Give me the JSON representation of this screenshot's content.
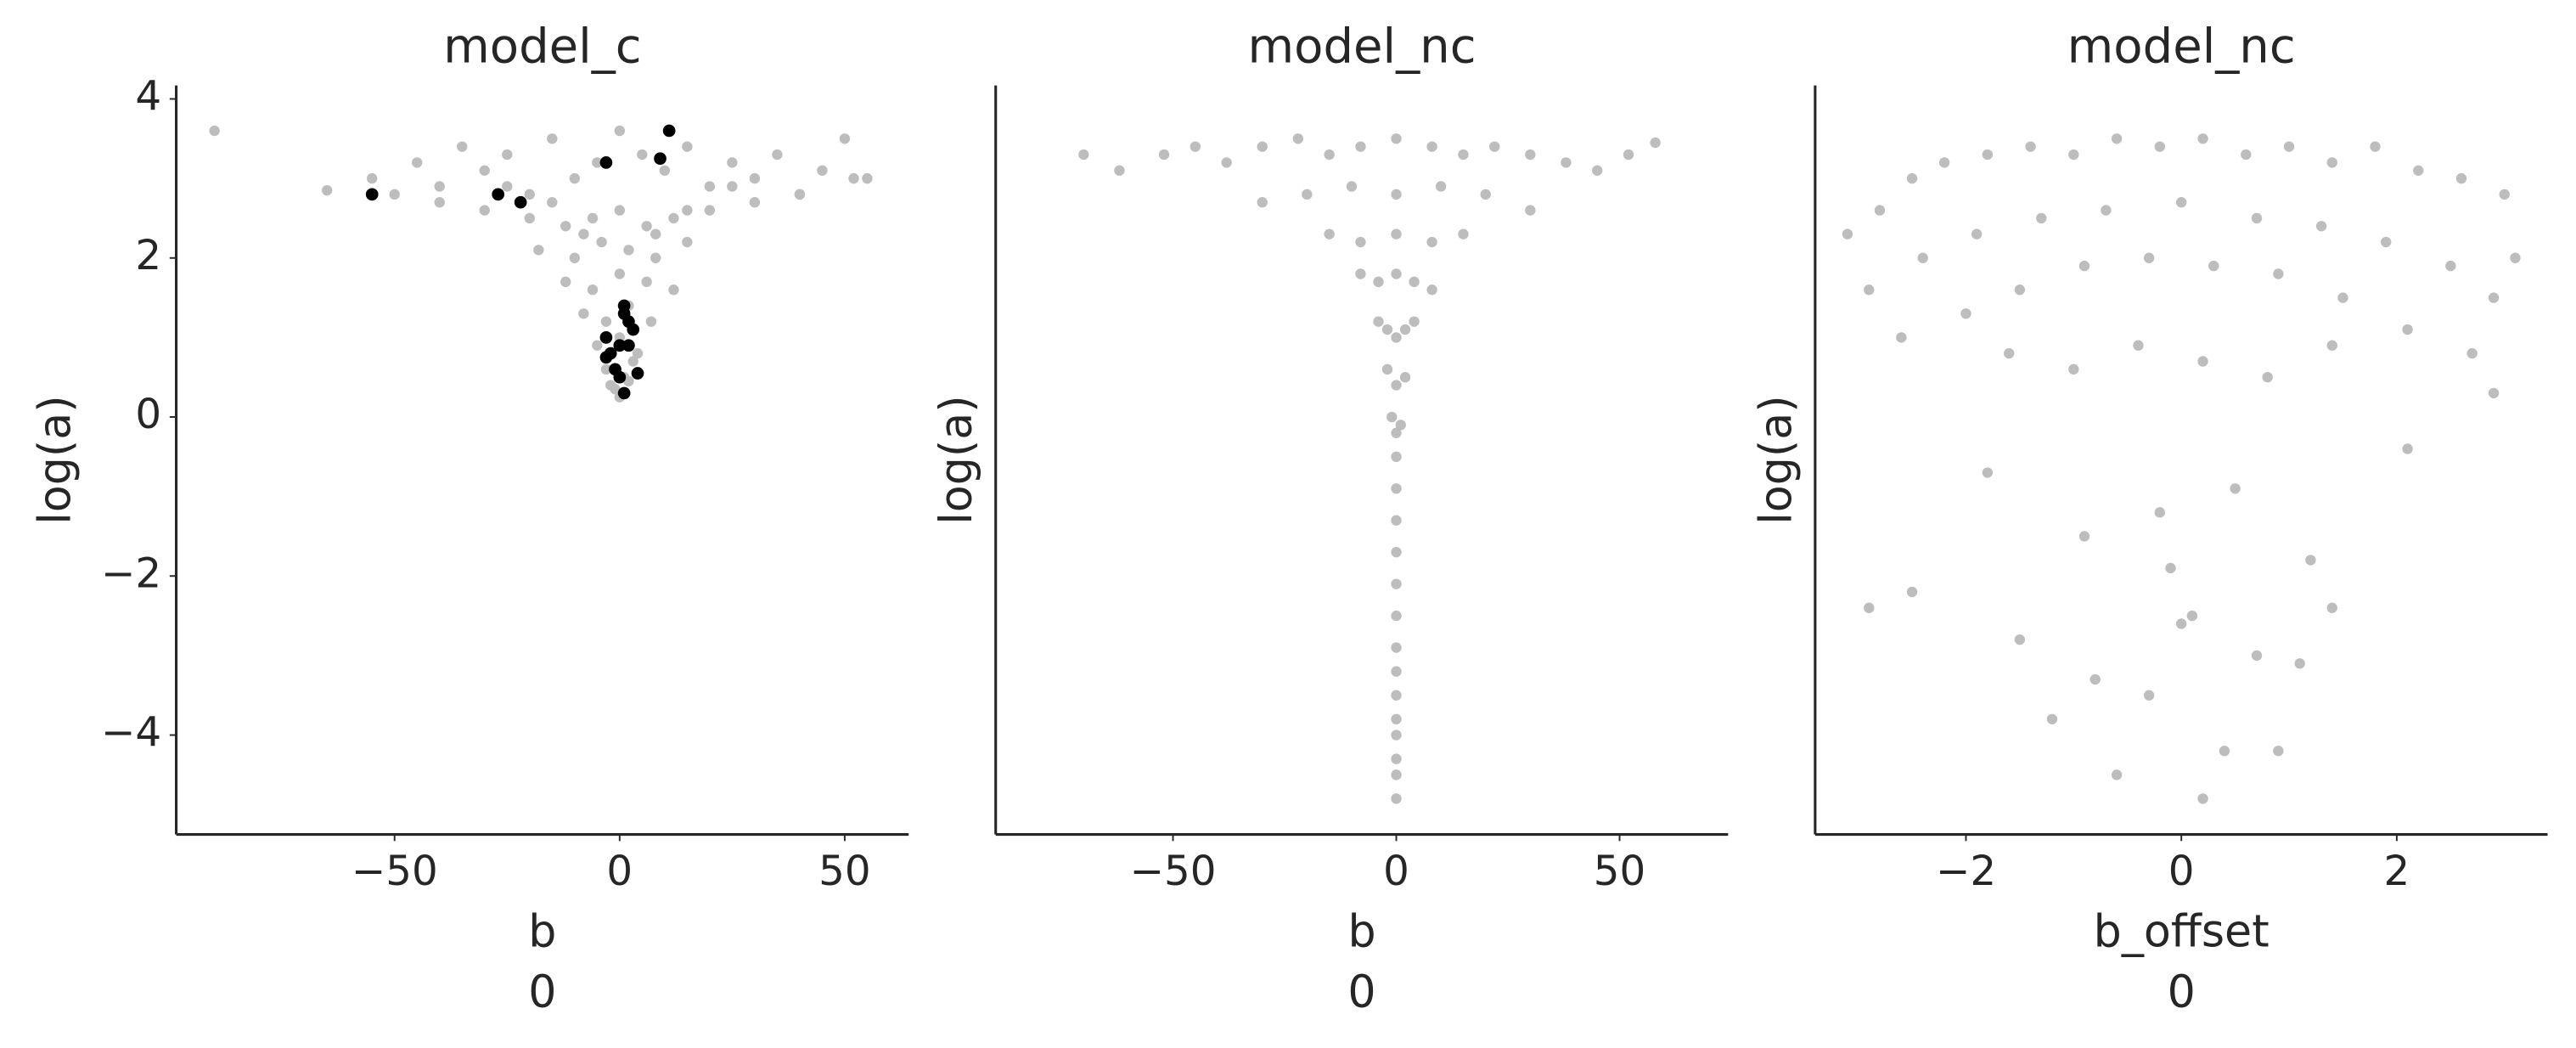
{
  "chart_data": [
    {
      "type": "scatter",
      "title": "model_c",
      "xlabel_lines": [
        "b",
        "0"
      ],
      "ylabel": "log(a)",
      "xlim": [
        -98.5,
        64.2
      ],
      "ylim": [
        -5.25,
        4.17
      ],
      "xticks": [
        {
          "value": -50,
          "label": "−50"
        },
        0,
        50
      ],
      "yticks": [
        {
          "value": -4,
          "label": "−4"
        },
        {
          "value": -2,
          "label": "−2"
        },
        0,
        2,
        4
      ],
      "series": [
        {
          "color": "#bdbdbd",
          "x": [
            -90,
            -65,
            -55,
            -45,
            -40,
            -35,
            -30,
            -25,
            -20,
            -15,
            -10,
            -5,
            0,
            5,
            10,
            15,
            20,
            25,
            30,
            35,
            40,
            45,
            50,
            55,
            -30,
            -20,
            -12,
            -6,
            0,
            6,
            12,
            20,
            30,
            -18,
            -10,
            -4,
            2,
            8,
            15,
            -12,
            -6,
            0,
            6,
            12,
            -8,
            -3,
            2,
            7,
            -5,
            0,
            4,
            -3,
            1,
            3,
            -2,
            2,
            -1,
            1,
            0,
            -25,
            25,
            -40,
            40,
            -50,
            52,
            -8,
            8,
            -15,
            15
          ],
          "y": [
            3.6,
            2.85,
            3.0,
            3.2,
            2.9,
            3.4,
            3.1,
            3.3,
            2.8,
            3.5,
            3.0,
            3.2,
            3.6,
            3.3,
            3.1,
            3.4,
            2.9,
            3.2,
            3.0,
            3.3,
            2.8,
            3.1,
            3.5,
            3.0,
            2.6,
            2.5,
            2.4,
            2.5,
            2.6,
            2.4,
            2.5,
            2.6,
            2.7,
            2.1,
            2.0,
            2.2,
            2.1,
            2.0,
            2.2,
            1.7,
            1.6,
            1.8,
            1.7,
            1.6,
            1.3,
            1.2,
            1.4,
            1.2,
            0.9,
            1.0,
            0.8,
            0.6,
            0.5,
            0.7,
            0.4,
            0.45,
            0.35,
            0.3,
            0.25,
            2.9,
            2.9,
            2.7,
            2.8,
            2.8,
            3.0,
            2.3,
            2.3,
            2.7,
            2.6
          ]
        },
        {
          "color": "#000000",
          "x": [
            -55,
            -27,
            -22,
            -3,
            9,
            11,
            1,
            1,
            2,
            3,
            -3,
            0,
            2,
            -2,
            -1,
            0,
            1,
            4,
            -3
          ],
          "y": [
            2.8,
            2.8,
            2.7,
            3.2,
            3.25,
            3.6,
            1.4,
            1.3,
            1.2,
            1.1,
            1.0,
            0.9,
            0.9,
            0.8,
            0.6,
            0.5,
            0.3,
            0.55,
            0.75
          ]
        }
      ]
    },
    {
      "type": "scatter",
      "title": "model_nc",
      "xlabel_lines": [
        "b",
        "0"
      ],
      "ylabel": "log(a)",
      "xlim": [
        -89.7,
        74.3
      ],
      "ylim": [
        -5.25,
        4.17
      ],
      "xticks": [
        {
          "value": -50,
          "label": "−50"
        },
        0,
        50
      ],
      "series": [
        {
          "color": "#bdbdbd",
          "x": [
            -70,
            -62,
            -52,
            -45,
            -38,
            -30,
            -22,
            -15,
            -8,
            0,
            8,
            15,
            22,
            30,
            38,
            45,
            52,
            58,
            -30,
            -20,
            -10,
            0,
            10,
            20,
            30,
            -15,
            -8,
            0,
            8,
            15,
            -8,
            -4,
            0,
            4,
            8,
            -4,
            -2,
            0,
            2,
            4,
            -2,
            0,
            2,
            -1,
            0,
            1,
            0,
            0,
            0,
            0,
            0,
            0,
            0,
            0,
            0,
            0,
            0,
            0,
            0,
            0
          ],
          "y": [
            3.3,
            3.1,
            3.3,
            3.4,
            3.2,
            3.4,
            3.5,
            3.3,
            3.4,
            3.5,
            3.4,
            3.3,
            3.4,
            3.3,
            3.2,
            3.1,
            3.3,
            3.45,
            2.7,
            2.8,
            2.9,
            2.8,
            2.9,
            2.8,
            2.6,
            2.3,
            2.2,
            2.3,
            2.2,
            2.3,
            1.8,
            1.7,
            1.8,
            1.7,
            1.6,
            1.2,
            1.1,
            1.0,
            1.1,
            1.2,
            0.6,
            0.4,
            0.5,
            0.0,
            -0.2,
            -0.1,
            -0.5,
            -0.9,
            -1.3,
            -1.7,
            -2.1,
            -2.5,
            -2.9,
            -3.2,
            -3.5,
            -3.8,
            -4.0,
            -4.3,
            -4.5,
            -4.8
          ]
        }
      ]
    },
    {
      "type": "scatter",
      "title": "model_nc",
      "xlabel_lines": [
        "b_offset",
        "0"
      ],
      "ylabel": "log(a)",
      "xlim": [
        -3.4,
        3.4
      ],
      "ylim": [
        -5.25,
        4.17
      ],
      "xticks": [
        {
          "value": -2,
          "label": "−2"
        },
        0,
        2
      ],
      "series": [
        {
          "color": "#bdbdbd",
          "x": [
            -3.1,
            -2.8,
            -2.5,
            -2.2,
            -1.8,
            -1.4,
            -1,
            -0.6,
            -0.2,
            0.2,
            0.6,
            1,
            1.4,
            1.8,
            2.2,
            2.6,
            3,
            3.1,
            -2.9,
            -2.4,
            -1.9,
            -1.3,
            -0.7,
            0,
            0.7,
            1.3,
            1.9,
            2.5,
            2.9,
            -2.6,
            -2,
            -1.5,
            -0.9,
            -0.3,
            0.3,
            0.9,
            1.5,
            2.1,
            2.7,
            -1.6,
            -1,
            -0.4,
            0.2,
            0.8,
            1.4,
            -2.9,
            -2.5,
            -1.8,
            -0.9,
            -0.2,
            0.5,
            1.2,
            2.1,
            2.9,
            -1.5,
            -0.8,
            0,
            0.7,
            1.4,
            -1.2,
            -0.3,
            0.4,
            1.1,
            -0.6,
            0.2,
            0.9,
            -0.1,
            0.1
          ],
          "y": [
            2.3,
            2.6,
            3.0,
            3.2,
            3.3,
            3.4,
            3.3,
            3.5,
            3.4,
            3.5,
            3.3,
            3.4,
            3.2,
            3.4,
            3.1,
            3.0,
            2.8,
            2.0,
            1.6,
            2.0,
            2.3,
            2.5,
            2.6,
            2.7,
            2.5,
            2.4,
            2.2,
            1.9,
            1.5,
            1.0,
            1.3,
            1.6,
            1.9,
            2.0,
            1.9,
            1.8,
            1.5,
            1.1,
            0.8,
            0.8,
            0.6,
            0.9,
            0.7,
            0.5,
            0.9,
            -2.4,
            -2.2,
            -0.7,
            -1.5,
            -1.2,
            -0.9,
            -1.8,
            -0.4,
            0.3,
            -2.8,
            -3.3,
            -2.6,
            -3.0,
            -2.4,
            -3.8,
            -3.5,
            -4.2,
            -3.1,
            -4.5,
            -4.8,
            -4.2,
            -1.9,
            -2.5
          ]
        }
      ]
    }
  ]
}
